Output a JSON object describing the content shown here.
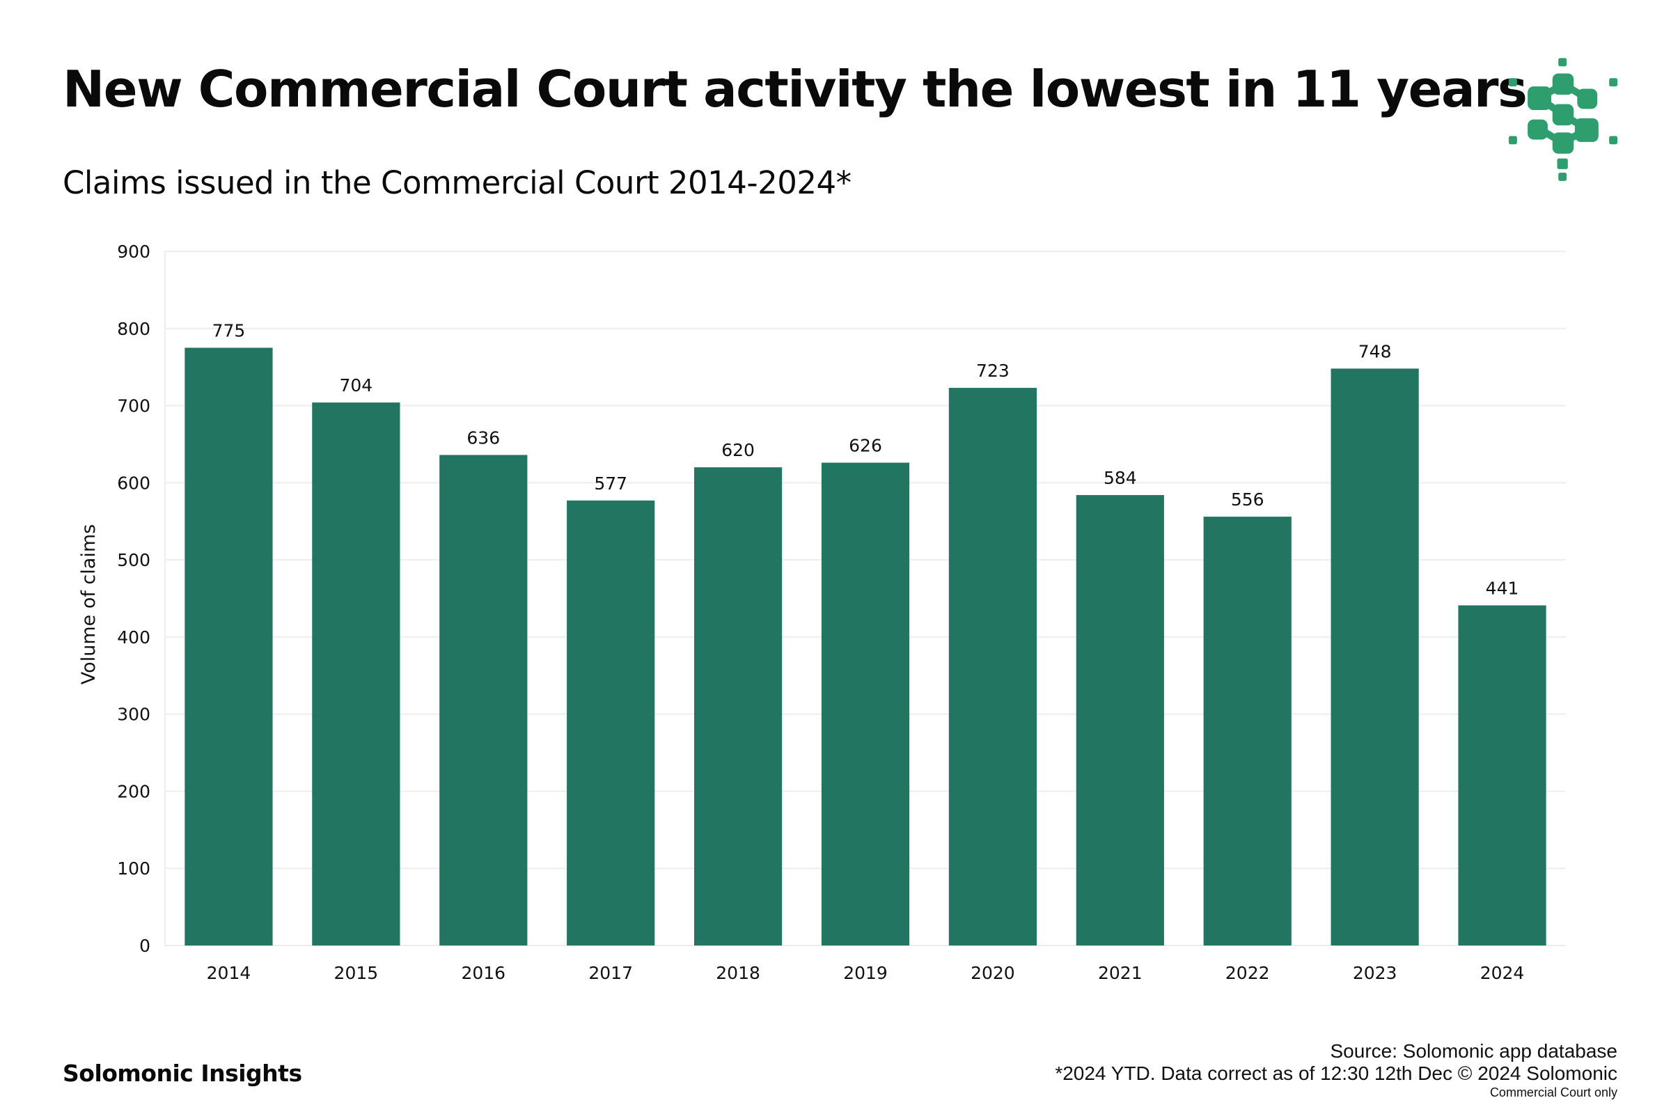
{
  "header": {
    "title": "New Commercial Court activity the lowest in 11 years",
    "subtitle": "Claims issued in the Commercial Court 2014-2024*",
    "logo_icon": "solomonic-network-s-icon",
    "logo_color": "#2e9e6e"
  },
  "footer": {
    "brand": "Solomonic Insights",
    "source": "Source: Solomonic app database",
    "note": "*2024 YTD. Data correct as of 12:30 12th Dec © 2024 Solomonic",
    "scope": "Commercial Court only"
  },
  "chart_data": {
    "type": "bar",
    "title": "Claims issued in the Commercial Court 2014-2024*",
    "xlabel": "",
    "ylabel": "Volume of claims",
    "categories": [
      "2014",
      "2015",
      "2016",
      "2017",
      "2018",
      "2019",
      "2020",
      "2021",
      "2022",
      "2023",
      "2024"
    ],
    "values": [
      775,
      704,
      636,
      577,
      620,
      626,
      723,
      584,
      556,
      748,
      441
    ],
    "ylim": [
      0,
      900
    ],
    "yticks": [
      0,
      100,
      200,
      300,
      400,
      500,
      600,
      700,
      800,
      900
    ],
    "grid": true,
    "legend": "none",
    "bar_color": "#217561",
    "data_labels": true
  }
}
